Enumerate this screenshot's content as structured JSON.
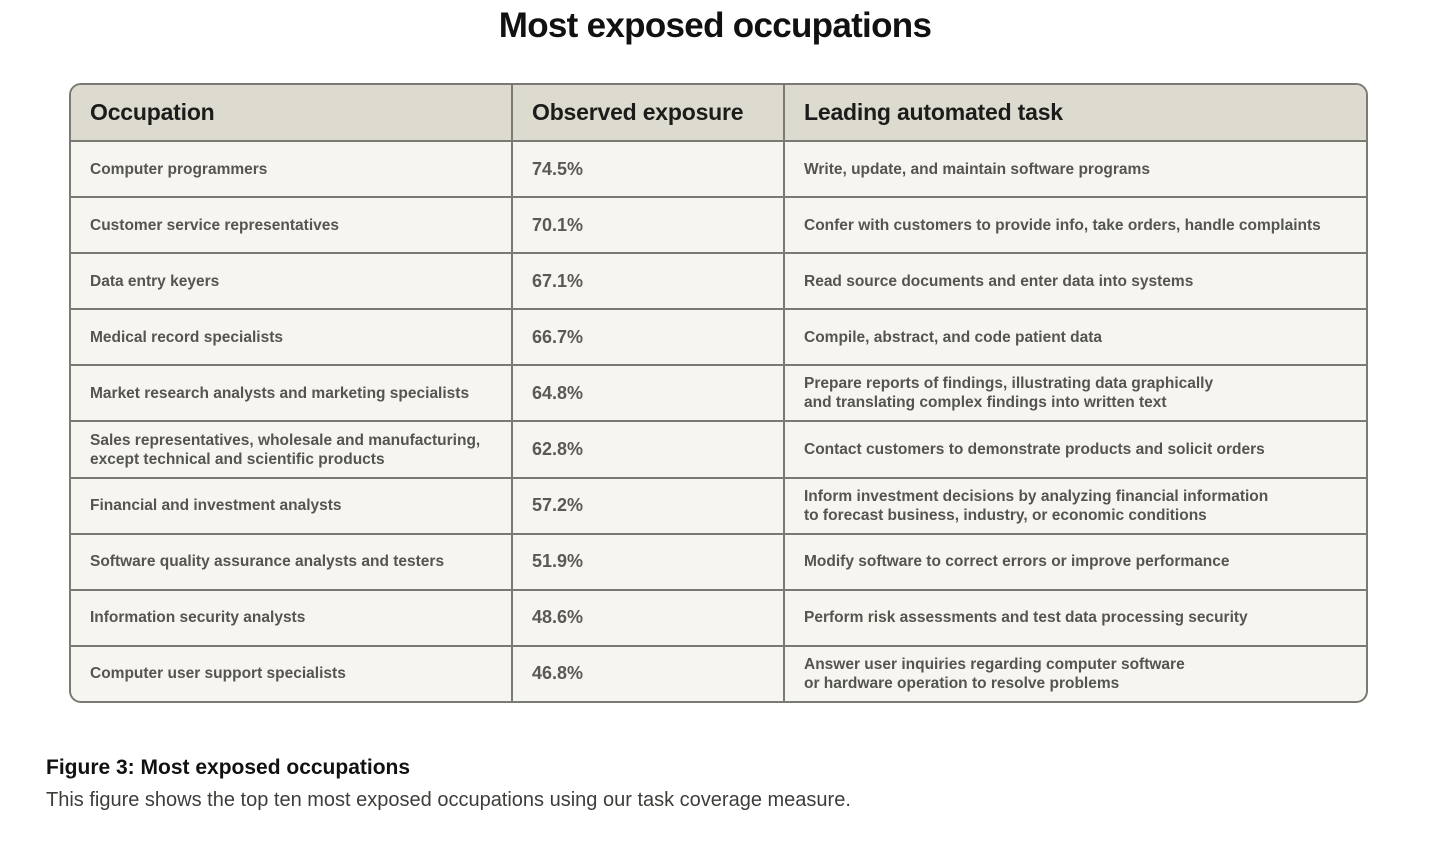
{
  "title": "Most exposed occupations",
  "chart_data": {
    "type": "table",
    "title": "Most exposed occupations",
    "columns": [
      "Occupation",
      "Observed exposure",
      "Leading automated task"
    ],
    "rows": [
      {
        "occupation": "Computer programmers",
        "exposure": "74.5%",
        "task": "Write, update, and maintain software programs"
      },
      {
        "occupation": "Customer service representatives",
        "exposure": "70.1%",
        "task": "Confer with customers to provide info, take orders, handle complaints"
      },
      {
        "occupation": "Data entry keyers",
        "exposure": "67.1%",
        "task": "Read source documents and enter data into systems"
      },
      {
        "occupation": "Medical record specialists",
        "exposure": "66.7%",
        "task": "Compile, abstract, and code patient data"
      },
      {
        "occupation": "Market research analysts and marketing specialists",
        "exposure": "64.8%",
        "task": "Prepare reports of findings, illustrating data graphically\nand translating complex findings into written text"
      },
      {
        "occupation": "Sales representatives, wholesale and manufacturing,\nexcept technical and scientific products",
        "exposure": "62.8%",
        "task": "Contact customers to demonstrate products and solicit orders"
      },
      {
        "occupation": "Financial and investment analysts",
        "exposure": "57.2%",
        "task": "Inform investment decisions by analyzing financial information\nto forecast business, industry, or economic conditions"
      },
      {
        "occupation": "Software quality assurance analysts and testers",
        "exposure": "51.9%",
        "task": "Modify software to correct errors or improve performance"
      },
      {
        "occupation": "Information security analysts",
        "exposure": "48.6%",
        "task": "Perform risk assessments and test data processing security"
      },
      {
        "occupation": "Computer user support specialists",
        "exposure": "46.8%",
        "task": "Answer user inquiries regarding computer software\nor hardware operation to resolve problems"
      }
    ]
  },
  "caption": {
    "title": "Figure 3: Most exposed occupations",
    "text": "This figure shows the top ten most exposed occupations using our task coverage measure."
  },
  "colors": {
    "header_bg": "#dddbd0",
    "row_bg": "#f7f5f0",
    "border": "#7a7a74"
  }
}
